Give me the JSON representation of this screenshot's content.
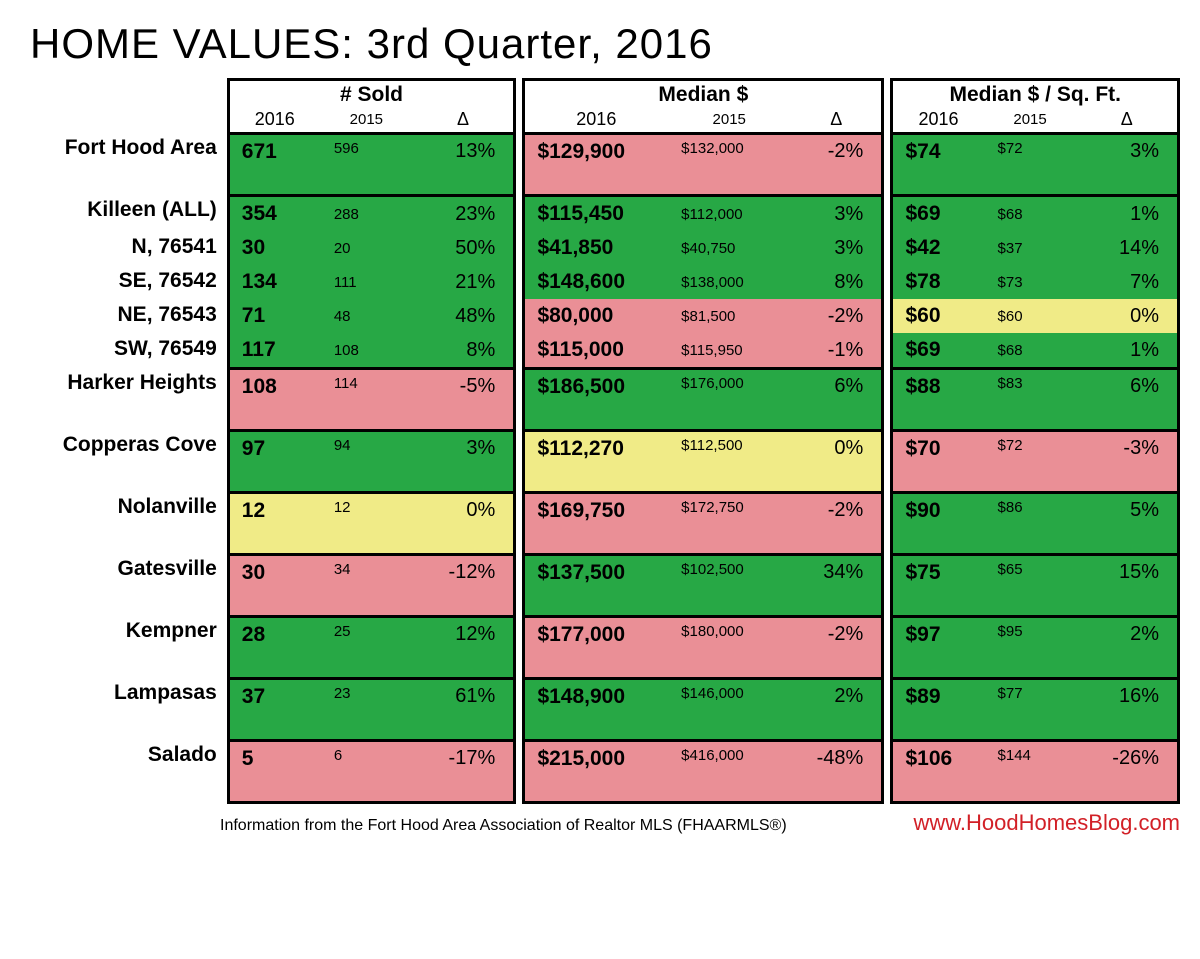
{
  "title": "HOME VALUES: 3rd Quarter, 2016",
  "columns": {
    "group1": "# Sold",
    "group2": "Median $",
    "group3": "Median $ / Sq. Ft.",
    "y2016": "2016",
    "y2015": "2015",
    "delta": "Δ"
  },
  "colors": {
    "green": "#27a845",
    "red": "#ea8f96",
    "yellow": "#f0eb87",
    "border": "#000000",
    "url": "#d22027"
  },
  "rows": [
    {
      "label": "Fort Hood Area",
      "tall": true,
      "secTop": true,
      "sold": {
        "v16": "671",
        "v15": "596",
        "d": "13%",
        "c": "green"
      },
      "med": {
        "v16": "$129,900",
        "v15": "$132,000",
        "d": "-2%",
        "c": "red"
      },
      "sqft": {
        "v16": "$74",
        "v15": "$72",
        "d": "3%",
        "c": "green"
      }
    },
    {
      "label": "Killeen (ALL)",
      "secTop": true,
      "sold": {
        "v16": "354",
        "v15": "288",
        "d": "23%",
        "c": "green"
      },
      "med": {
        "v16": "$115,450",
        "v15": "$112,000",
        "d": "3%",
        "c": "green"
      },
      "sqft": {
        "v16": "$69",
        "v15": "$68",
        "d": "1%",
        "c": "green"
      }
    },
    {
      "label": "N, 76541",
      "sold": {
        "v16": "30",
        "v15": "20",
        "d": "50%",
        "c": "green"
      },
      "med": {
        "v16": "$41,850",
        "v15": "$40,750",
        "d": "3%",
        "c": "green"
      },
      "sqft": {
        "v16": "$42",
        "v15": "$37",
        "d": "14%",
        "c": "green"
      }
    },
    {
      "label": "SE, 76542",
      "sold": {
        "v16": "134",
        "v15": "111",
        "d": "21%",
        "c": "green"
      },
      "med": {
        "v16": "$148,600",
        "v15": "$138,000",
        "d": "8%",
        "c": "green"
      },
      "sqft": {
        "v16": "$78",
        "v15": "$73",
        "d": "7%",
        "c": "green"
      }
    },
    {
      "label": "NE, 76543",
      "sold": {
        "v16": "71",
        "v15": "48",
        "d": "48%",
        "c": "green"
      },
      "med": {
        "v16": "$80,000",
        "v15": "$81,500",
        "d": "-2%",
        "c": "red"
      },
      "sqft": {
        "v16": "$60",
        "v15": "$60",
        "d": "0%",
        "c": "yellow"
      }
    },
    {
      "label": "SW, 76549",
      "sold": {
        "v16": "117",
        "v15": "108",
        "d": "8%",
        "c": "green"
      },
      "med": {
        "v16": "$115,000",
        "v15": "$115,950",
        "d": "-1%",
        "c": "red"
      },
      "sqft": {
        "v16": "$69",
        "v15": "$68",
        "d": "1%",
        "c": "green"
      }
    },
    {
      "label": "Harker Heights",
      "tall": true,
      "secTop": true,
      "sold": {
        "v16": "108",
        "v15": "114",
        "d": "-5%",
        "c": "red"
      },
      "med": {
        "v16": "$186,500",
        "v15": "$176,000",
        "d": "6%",
        "c": "green"
      },
      "sqft": {
        "v16": "$88",
        "v15": "$83",
        "d": "6%",
        "c": "green"
      }
    },
    {
      "label": "Copperas Cove",
      "tall": true,
      "secTop": true,
      "sold": {
        "v16": "97",
        "v15": "94",
        "d": "3%",
        "c": "green"
      },
      "med": {
        "v16": "$112,270",
        "v15": "$112,500",
        "d": "0%",
        "c": "yellow"
      },
      "sqft": {
        "v16": "$70",
        "v15": "$72",
        "d": "-3%",
        "c": "red"
      }
    },
    {
      "label": "Nolanville",
      "tall": true,
      "secTop": true,
      "sold": {
        "v16": "12",
        "v15": "12",
        "d": "0%",
        "c": "yellow"
      },
      "med": {
        "v16": "$169,750",
        "v15": "$172,750",
        "d": "-2%",
        "c": "red"
      },
      "sqft": {
        "v16": "$90",
        "v15": "$86",
        "d": "5%",
        "c": "green"
      }
    },
    {
      "label": "Gatesville",
      "tall": true,
      "secTop": true,
      "sold": {
        "v16": "30",
        "v15": "34",
        "d": "-12%",
        "c": "red"
      },
      "med": {
        "v16": "$137,500",
        "v15": "$102,500",
        "d": "34%",
        "c": "green"
      },
      "sqft": {
        "v16": "$75",
        "v15": "$65",
        "d": "15%",
        "c": "green"
      }
    },
    {
      "label": "Kempner",
      "tall": true,
      "secTop": true,
      "sold": {
        "v16": "28",
        "v15": "25",
        "d": "12%",
        "c": "green"
      },
      "med": {
        "v16": "$177,000",
        "v15": "$180,000",
        "d": "-2%",
        "c": "red"
      },
      "sqft": {
        "v16": "$97",
        "v15": "$95",
        "d": "2%",
        "c": "green"
      }
    },
    {
      "label": "Lampasas",
      "tall": true,
      "secTop": true,
      "sold": {
        "v16": "37",
        "v15": "23",
        "d": "61%",
        "c": "green"
      },
      "med": {
        "v16": "$148,900",
        "v15": "$146,000",
        "d": "2%",
        "c": "green"
      },
      "sqft": {
        "v16": "$89",
        "v15": "$77",
        "d": "16%",
        "c": "green"
      }
    },
    {
      "label": "Salado",
      "tall": true,
      "secTop": true,
      "last": true,
      "sold": {
        "v16": "5",
        "v15": "6",
        "d": "-17%",
        "c": "red"
      },
      "med": {
        "v16": "$215,000",
        "v15": "$416,000",
        "d": "-48%",
        "c": "red"
      },
      "sqft": {
        "v16": "$106",
        "v15": "$144",
        "d": "-26%",
        "c": "red"
      }
    }
  ],
  "footer": {
    "source": "Information from the Fort Hood Area Association of Realtor MLS (FHAARMLS®)",
    "url": "www.HoodHomesBlog.com"
  }
}
